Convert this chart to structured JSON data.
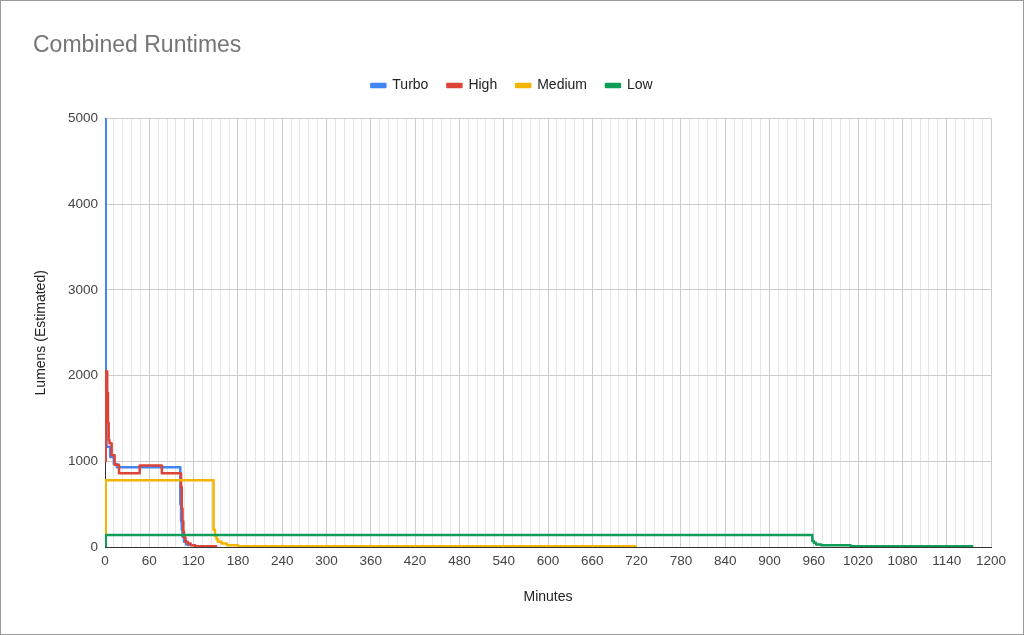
{
  "chart_data": {
    "type": "step",
    "title": "Combined Runtimes",
    "xlabel": "Minutes",
    "ylabel": "Lumens (Estimated)",
    "series": [
      {
        "name": "Turbo",
        "color": "#4285f4",
        "x": [
          0,
          1,
          2,
          7,
          12,
          16,
          102,
          103,
          104,
          105,
          107,
          110,
          113
        ],
        "values": [
          5000,
          1600,
          1170,
          1050,
          970,
          930,
          500,
          300,
          200,
          120,
          60,
          30,
          10
        ]
      },
      {
        "name": "High",
        "color": "#db4437",
        "x": [
          0,
          1,
          3,
          4,
          5,
          6,
          9,
          13,
          19,
          47,
          77,
          103,
          104,
          105,
          106,
          107,
          109,
          112,
          116,
          122,
          152
        ],
        "values": [
          1000,
          2050,
          1800,
          1450,
          1250,
          1210,
          1070,
          960,
          860,
          950,
          860,
          700,
          450,
          300,
          180,
          110,
          60,
          40,
          20,
          10,
          10
        ]
      },
      {
        "name": "Medium",
        "color": "#f4b400",
        "x": [
          0,
          1,
          147,
          149,
          151,
          153,
          158,
          165,
          180,
          720
        ],
        "values": [
          0,
          780,
          200,
          130,
          90,
          60,
          40,
          20,
          10,
          10
        ]
      },
      {
        "name": "Low",
        "color": "#0f9d58",
        "x": [
          0,
          1,
          958,
          960,
          963,
          970,
          1010,
          1176
        ],
        "values": [
          0,
          140,
          70,
          50,
          30,
          20,
          10,
          10
        ]
      }
    ],
    "xlim": [
      0,
      1200
    ],
    "ylim": [
      0,
      5000
    ],
    "xticks": [
      0,
      {
        "value": 12,
        "label": null
      },
      {
        "value": 24,
        "label": null
      },
      {
        "value": 36,
        "label": null
      },
      {
        "value": 48,
        "label": null
      },
      60,
      {
        "value": 72,
        "label": null
      },
      {
        "value": 84,
        "label": null
      },
      {
        "value": 96,
        "label": null
      },
      {
        "value": 108,
        "label": null
      },
      120,
      {
        "value": 132,
        "label": null
      },
      {
        "value": 144,
        "label": null
      },
      {
        "value": 156,
        "label": null
      },
      {
        "value": 168,
        "label": null
      },
      180,
      {
        "value": 192,
        "label": null
      },
      {
        "value": 204,
        "label": null
      },
      {
        "value": 216,
        "label": null
      },
      {
        "value": 228,
        "label": null
      },
      240,
      {
        "value": 252,
        "label": null
      },
      {
        "value": 264,
        "label": null
      },
      {
        "value": 276,
        "label": null
      },
      {
        "value": 288,
        "label": null
      },
      300,
      {
        "value": 312,
        "label": null
      },
      {
        "value": 324,
        "label": null
      },
      {
        "value": 336,
        "label": null
      },
      {
        "value": 348,
        "label": null
      },
      360,
      {
        "value": 372,
        "label": null
      },
      {
        "value": 384,
        "label": null
      },
      {
        "value": 396,
        "label": null
      },
      {
        "value": 408,
        "label": null
      },
      420,
      {
        "value": 432,
        "label": null
      },
      {
        "value": 444,
        "label": null
      },
      {
        "value": 456,
        "label": null
      },
      {
        "value": 468,
        "label": null
      },
      480,
      {
        "value": 492,
        "label": null
      },
      {
        "value": 504,
        "label": null
      },
      {
        "value": 516,
        "label": null
      },
      {
        "value": 528,
        "label": null
      },
      540,
      {
        "value": 552,
        "label": null
      },
      {
        "value": 564,
        "label": null
      },
      {
        "value": 576,
        "label": null
      },
      {
        "value": 588,
        "label": null
      },
      600,
      {
        "value": 612,
        "label": null
      },
      {
        "value": 624,
        "label": null
      },
      {
        "value": 636,
        "label": null
      },
      {
        "value": 648,
        "label": null
      },
      660,
      {
        "value": 672,
        "label": null
      },
      {
        "value": 684,
        "label": null
      },
      {
        "value": 696,
        "label": null
      },
      {
        "value": 708,
        "label": null
      },
      720,
      {
        "value": 732,
        "label": null
      },
      {
        "value": 744,
        "label": null
      },
      {
        "value": 756,
        "label": null
      },
      {
        "value": 768,
        "label": null
      },
      780,
      {
        "value": 792,
        "label": null
      },
      {
        "value": 804,
        "label": null
      },
      {
        "value": 816,
        "label": null
      },
      {
        "value": 828,
        "label": null
      },
      840,
      {
        "value": 852,
        "label": null
      },
      {
        "value": 864,
        "label": null
      },
      {
        "value": 876,
        "label": null
      },
      {
        "value": 888,
        "label": null
      },
      900,
      {
        "value": 912,
        "label": null
      },
      {
        "value": 924,
        "label": null
      },
      {
        "value": 936,
        "label": null
      },
      {
        "value": 948,
        "label": null
      },
      960,
      {
        "value": 972,
        "label": null
      },
      {
        "value": 984,
        "label": null
      },
      {
        "value": 996,
        "label": null
      },
      {
        "value": 1008,
        "label": null
      },
      1020,
      {
        "value": 1032,
        "label": null
      },
      {
        "value": 1044,
        "label": null
      },
      {
        "value": 1056,
        "label": null
      },
      {
        "value": 1068,
        "label": null
      },
      1080,
      {
        "value": 1092,
        "label": null
      },
      {
        "value": 1104,
        "label": null
      },
      {
        "value": 1116,
        "label": null
      },
      {
        "value": 1128,
        "label": null
      },
      1140,
      {
        "value": 1152,
        "label": null
      },
      {
        "value": 1164,
        "label": null
      },
      {
        "value": 1176,
        "label": null
      },
      {
        "value": 1188,
        "label": null
      },
      1200
    ],
    "yticks": [
      0,
      1000,
      2000,
      3000,
      4000,
      5000
    ],
    "grid": true,
    "legend": "top"
  }
}
